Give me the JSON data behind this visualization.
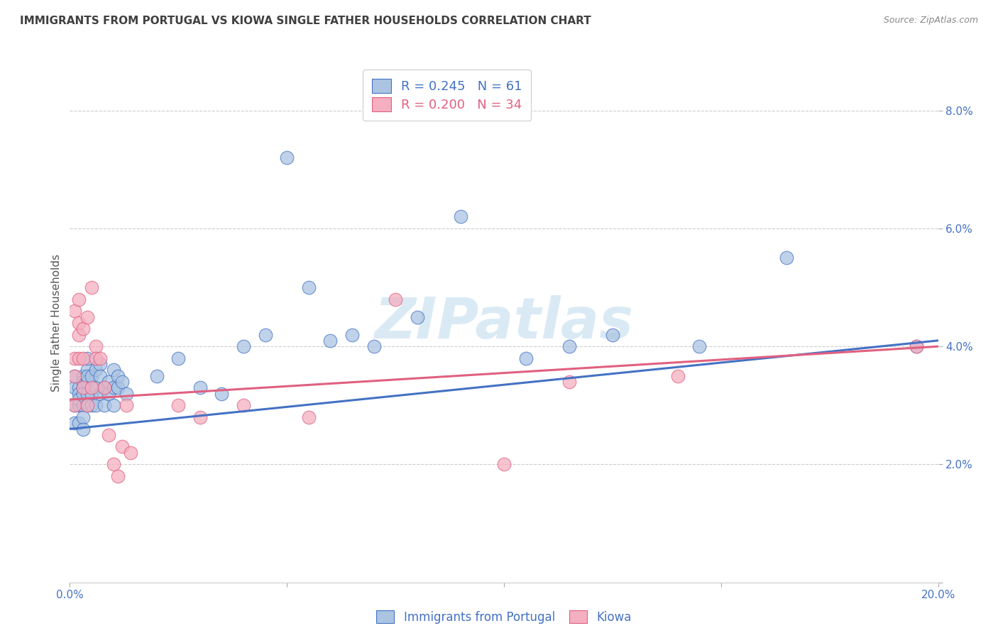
{
  "title": "IMMIGRANTS FROM PORTUGAL VS KIOWA SINGLE FATHER HOUSEHOLDS CORRELATION CHART",
  "source": "Source: ZipAtlas.com",
  "ylabel": "Single Father Households",
  "legend_blue_label": "Immigrants from Portugal",
  "legend_pink_label": "Kiowa",
  "legend_blue_r": "R = 0.245",
  "legend_blue_n": "N = 61",
  "legend_pink_r": "R = 0.200",
  "legend_pink_n": "N = 34",
  "blue_color": "#aac4e2",
  "pink_color": "#f4afc0",
  "blue_line_color": "#4472c4",
  "pink_line_color": "#e06080",
  "title_color": "#404040",
  "source_color": "#888888",
  "legend_text_color_blue": "#4472c4",
  "legend_text_color_pink": "#e06080",
  "axis_tick_color": "#4472c4",
  "axis_label_color": "#555555",
  "watermark_color": "#daeaf5",
  "background_color": "#ffffff",
  "grid_color": "#cccccc",
  "xlim": [
    0.0,
    0.2
  ],
  "ylim": [
    0.0,
    0.088
  ],
  "blue_scatter_x": [
    0.001,
    0.001,
    0.001,
    0.001,
    0.002,
    0.002,
    0.002,
    0.002,
    0.002,
    0.003,
    0.003,
    0.003,
    0.003,
    0.003,
    0.003,
    0.003,
    0.004,
    0.004,
    0.004,
    0.004,
    0.004,
    0.004,
    0.005,
    0.005,
    0.005,
    0.006,
    0.006,
    0.006,
    0.007,
    0.007,
    0.007,
    0.008,
    0.008,
    0.009,
    0.009,
    0.01,
    0.01,
    0.01,
    0.011,
    0.011,
    0.012,
    0.013,
    0.02,
    0.025,
    0.03,
    0.035,
    0.04,
    0.045,
    0.05,
    0.055,
    0.06,
    0.065,
    0.07,
    0.08,
    0.09,
    0.105,
    0.115,
    0.125,
    0.145,
    0.165,
    0.195
  ],
  "blue_scatter_y": [
    0.027,
    0.03,
    0.033,
    0.035,
    0.027,
    0.03,
    0.033,
    0.032,
    0.031,
    0.033,
    0.035,
    0.034,
    0.032,
    0.03,
    0.028,
    0.026,
    0.036,
    0.034,
    0.032,
    0.03,
    0.035,
    0.038,
    0.032,
    0.035,
    0.03,
    0.033,
    0.036,
    0.03,
    0.037,
    0.035,
    0.032,
    0.033,
    0.03,
    0.034,
    0.032,
    0.033,
    0.03,
    0.036,
    0.033,
    0.035,
    0.034,
    0.032,
    0.035,
    0.038,
    0.033,
    0.032,
    0.04,
    0.042,
    0.072,
    0.05,
    0.041,
    0.042,
    0.04,
    0.045,
    0.062,
    0.038,
    0.04,
    0.042,
    0.04,
    0.055,
    0.04
  ],
  "pink_scatter_x": [
    0.001,
    0.001,
    0.001,
    0.001,
    0.002,
    0.002,
    0.002,
    0.002,
    0.003,
    0.003,
    0.003,
    0.004,
    0.004,
    0.005,
    0.005,
    0.006,
    0.006,
    0.007,
    0.008,
    0.009,
    0.01,
    0.011,
    0.012,
    0.013,
    0.014,
    0.025,
    0.03,
    0.04,
    0.055,
    0.075,
    0.1,
    0.115,
    0.14,
    0.195
  ],
  "pink_scatter_y": [
    0.03,
    0.035,
    0.038,
    0.046,
    0.038,
    0.042,
    0.044,
    0.048,
    0.033,
    0.038,
    0.043,
    0.03,
    0.045,
    0.033,
    0.05,
    0.04,
    0.038,
    0.038,
    0.033,
    0.025,
    0.02,
    0.018,
    0.023,
    0.03,
    0.022,
    0.03,
    0.028,
    0.03,
    0.028,
    0.048,
    0.02,
    0.034,
    0.035,
    0.04
  ],
  "blue_line_x": [
    0.0,
    0.2
  ],
  "blue_line_y": [
    0.026,
    0.041
  ],
  "pink_line_x": [
    0.0,
    0.2
  ],
  "pink_line_y": [
    0.031,
    0.04
  ],
  "yticks": [
    0.0,
    0.02,
    0.04,
    0.06,
    0.08
  ],
  "ytick_labels_right": [
    "",
    "2.0%",
    "4.0%",
    "6.0%",
    "8.0%"
  ],
  "xticks": [
    0.0,
    0.05,
    0.1,
    0.15,
    0.2
  ],
  "xtick_labels": [
    "0.0%",
    "",
    "",
    "",
    "20.0%"
  ]
}
